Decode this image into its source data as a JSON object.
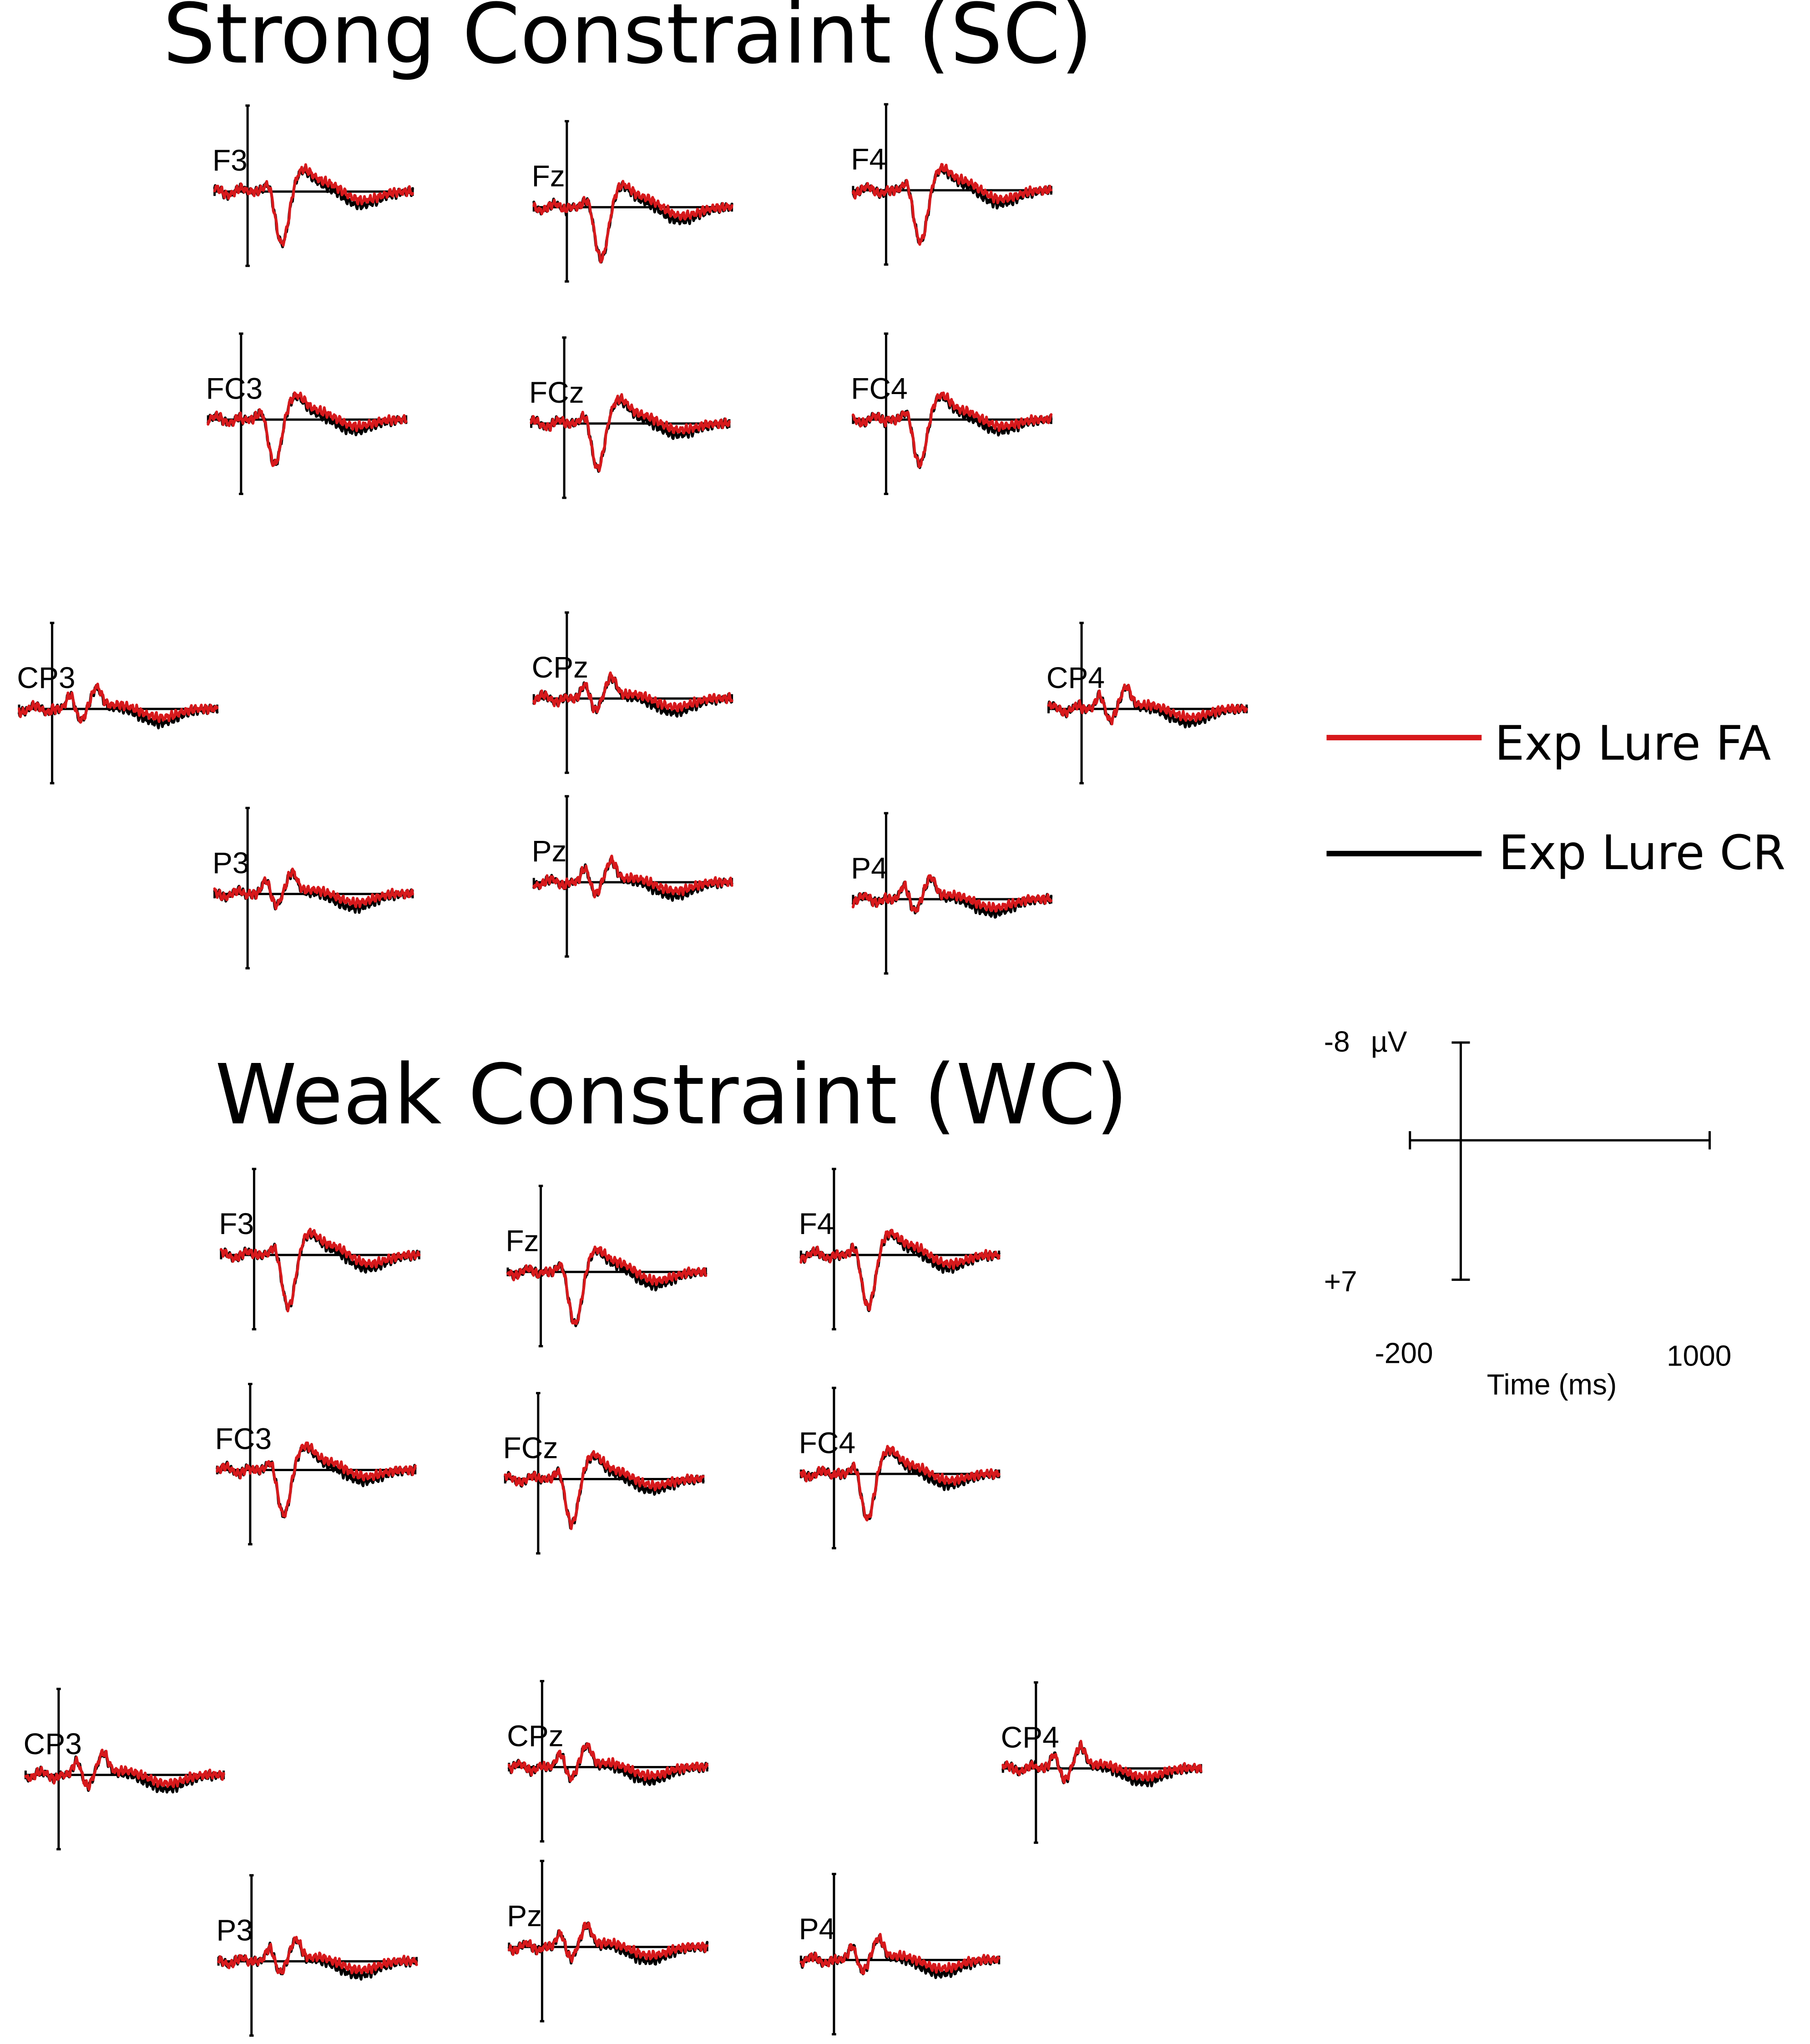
{
  "chart_data": {
    "type": "line",
    "panels": [
      {
        "title": "Strong Constraint (SC)",
        "electrodes": [
          "F3",
          "Fz",
          "F4",
          "FC3",
          "FCz",
          "FC4",
          "CP3",
          "CPz",
          "CP4",
          "P3",
          "Pz",
          "P4"
        ]
      },
      {
        "title": "Weak Constraint (WC)",
        "electrodes": [
          "F3",
          "Fz",
          "F4",
          "FC3",
          "FCz",
          "FC4",
          "CP3",
          "CPz",
          "CP4",
          "P3",
          "Pz",
          "P4"
        ]
      }
    ],
    "series": [
      {
        "name": "Exp Lure FA",
        "color": "#d7191c"
      },
      {
        "name": "Exp Lure CR",
        "color": "#000000"
      }
    ],
    "scale": {
      "y_top_label": "-8",
      "y_unit": "µV",
      "y_bottom_label": "+7",
      "x_start_label": "-200",
      "x_end_label": "1000",
      "x_axis_label": "Time (ms)"
    },
    "xlim": [
      -200,
      1000
    ],
    "ylim": [
      -8,
      7
    ],
    "negative_up": true
  }
}
